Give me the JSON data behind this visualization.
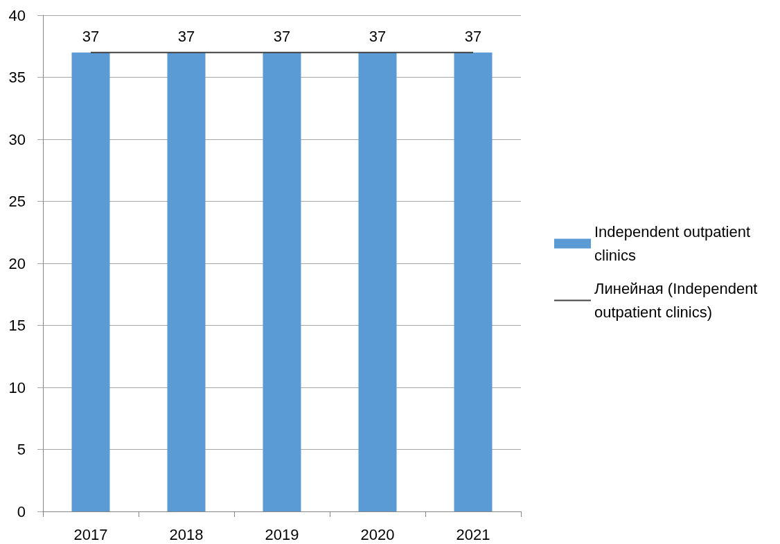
{
  "chart_data": {
    "type": "bar",
    "categories": [
      "2017",
      "2018",
      "2019",
      "2020",
      "2021"
    ],
    "series": [
      {
        "name": "Independent outpatient clinics",
        "color": "#5b9bd5",
        "values": [
          37,
          37,
          37,
          37,
          37
        ],
        "value_labels": [
          "37",
          "37",
          "37",
          "37",
          "37"
        ]
      },
      {
        "type": "line",
        "name": "Линейная (Independent outpatient clinics)",
        "color": "#404040",
        "values": [
          37,
          37,
          37,
          37,
          37
        ]
      }
    ],
    "ylim": [
      0,
      40
    ],
    "yticks": [
      0,
      5,
      10,
      15,
      20,
      25,
      30,
      35,
      40
    ],
    "grid": "y",
    "legend": "right",
    "marker": "none"
  }
}
